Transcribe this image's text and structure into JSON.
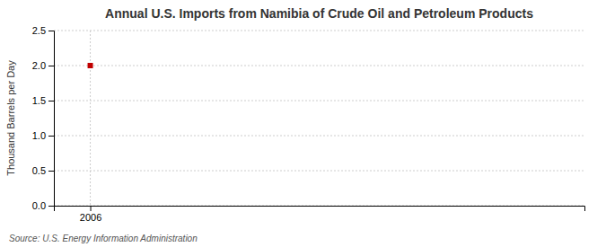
{
  "chart_data": {
    "type": "scatter",
    "title": "Annual U.S. Imports from Namibia of Crude Oil and Petroleum Products",
    "ylabel": "Thousand Barrels per Day",
    "annotations": [
      "Source: U.S. Energy Information Administration"
    ],
    "x": [
      2006
    ],
    "values": [
      2.0
    ],
    "color": "#c00000",
    "marker": "square",
    "xlim": [
      2005.3,
      2015.5
    ],
    "xticks": [
      2006
    ],
    "ylim": [
      0.0,
      2.5
    ],
    "yticks": [
      {
        "value": 0.0,
        "label": "0.0"
      },
      {
        "value": 0.5,
        "label": "0.5"
      },
      {
        "value": 1.0,
        "label": "1.0"
      },
      {
        "value": 1.5,
        "label": "1.5"
      },
      {
        "value": 2.0,
        "label": "2.0"
      },
      {
        "value": 2.5,
        "label": "2.5"
      }
    ],
    "grid": true
  }
}
